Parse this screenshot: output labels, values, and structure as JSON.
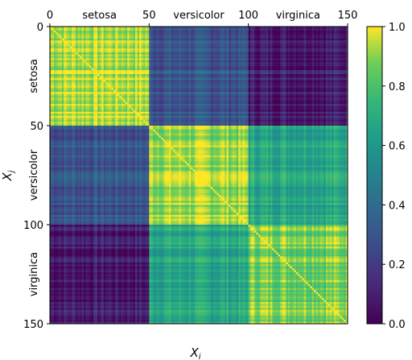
{
  "chart_data": {
    "type": "heatmap",
    "title": "",
    "xlabel": "X",
    "xlabel_sub": "i",
    "ylabel": "X",
    "ylabel_sub": "j",
    "n": 150,
    "x_ticks": [
      "0",
      "50",
      "100",
      "150"
    ],
    "y_ticks": [
      "0",
      "50",
      "100",
      "150"
    ],
    "x_tick_values": [
      0,
      50,
      100,
      150
    ],
    "y_tick_values": [
      0,
      50,
      100,
      150
    ],
    "x_ticks_position": "top",
    "xlim": [
      0,
      150
    ],
    "ylim": [
      150,
      0
    ],
    "groups": [
      {
        "label": "setosa",
        "start": 0,
        "end": 50
      },
      {
        "label": "versicolor",
        "start": 50,
        "end": 100
      },
      {
        "label": "virginica",
        "start": 100,
        "end": 150
      }
    ],
    "block_means": [
      [
        0.95,
        0.3,
        0.1
      ],
      [
        0.3,
        0.92,
        0.68
      ],
      [
        0.1,
        0.68,
        0.9
      ]
    ],
    "value_range": [
      0.0,
      1.0
    ],
    "colormap": "viridis",
    "colorbar": {
      "ticks": [
        "0.0",
        "0.2",
        "0.4",
        "0.6",
        "0.8",
        "1.0"
      ],
      "tick_values": [
        0.0,
        0.2,
        0.4,
        0.6,
        0.8,
        1.0
      ],
      "placement": "right"
    },
    "grid": false
  }
}
